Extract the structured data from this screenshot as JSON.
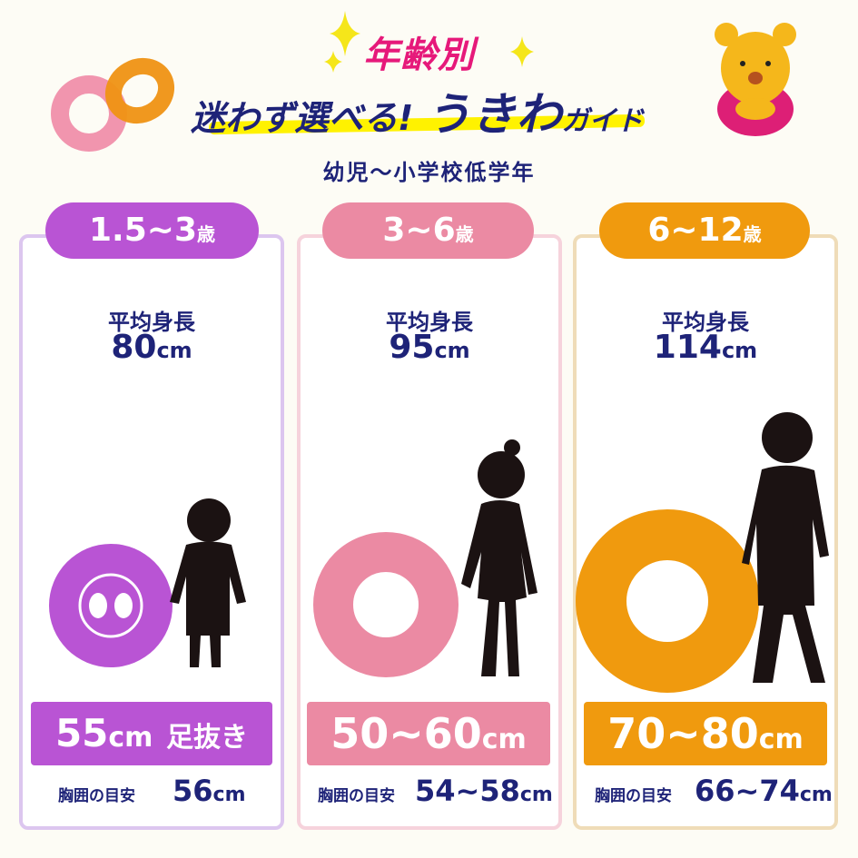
{
  "header": {
    "title_top": "年齢別",
    "title_main": "迷わず選べる!",
    "title_big": "うきわ",
    "title_small": "ガイド",
    "subtitle": "幼児～小学校低学年"
  },
  "colors": {
    "purple": "#b954d4",
    "pink": "#eb8aa3",
    "orange": "#f09a0e",
    "navy": "#1e2378"
  },
  "columns": [
    {
      "age": "1.5~3",
      "age_unit": "歳",
      "height_label": "平均身長",
      "height_value": "80",
      "height_unit": "cm",
      "size_value": "55",
      "size_unit": "cm",
      "size_note": "足抜き",
      "chest_label": "胸囲の目安",
      "chest_value": "56",
      "chest_unit": "cm"
    },
    {
      "age": "3~6",
      "age_unit": "歳",
      "height_label": "平均身長",
      "height_value": "95",
      "height_unit": "cm",
      "size_value": "50~60",
      "size_unit": "cm",
      "chest_label": "胸囲の目安",
      "chest_value": "54~58",
      "chest_unit": "cm"
    },
    {
      "age": "6~12",
      "age_unit": "歳",
      "height_label": "平均身長",
      "height_value": "114",
      "height_unit": "cm",
      "size_value": "70~80",
      "size_unit": "cm",
      "chest_label": "胸囲の目安",
      "chest_value": "66~74",
      "chest_unit": "cm"
    }
  ]
}
